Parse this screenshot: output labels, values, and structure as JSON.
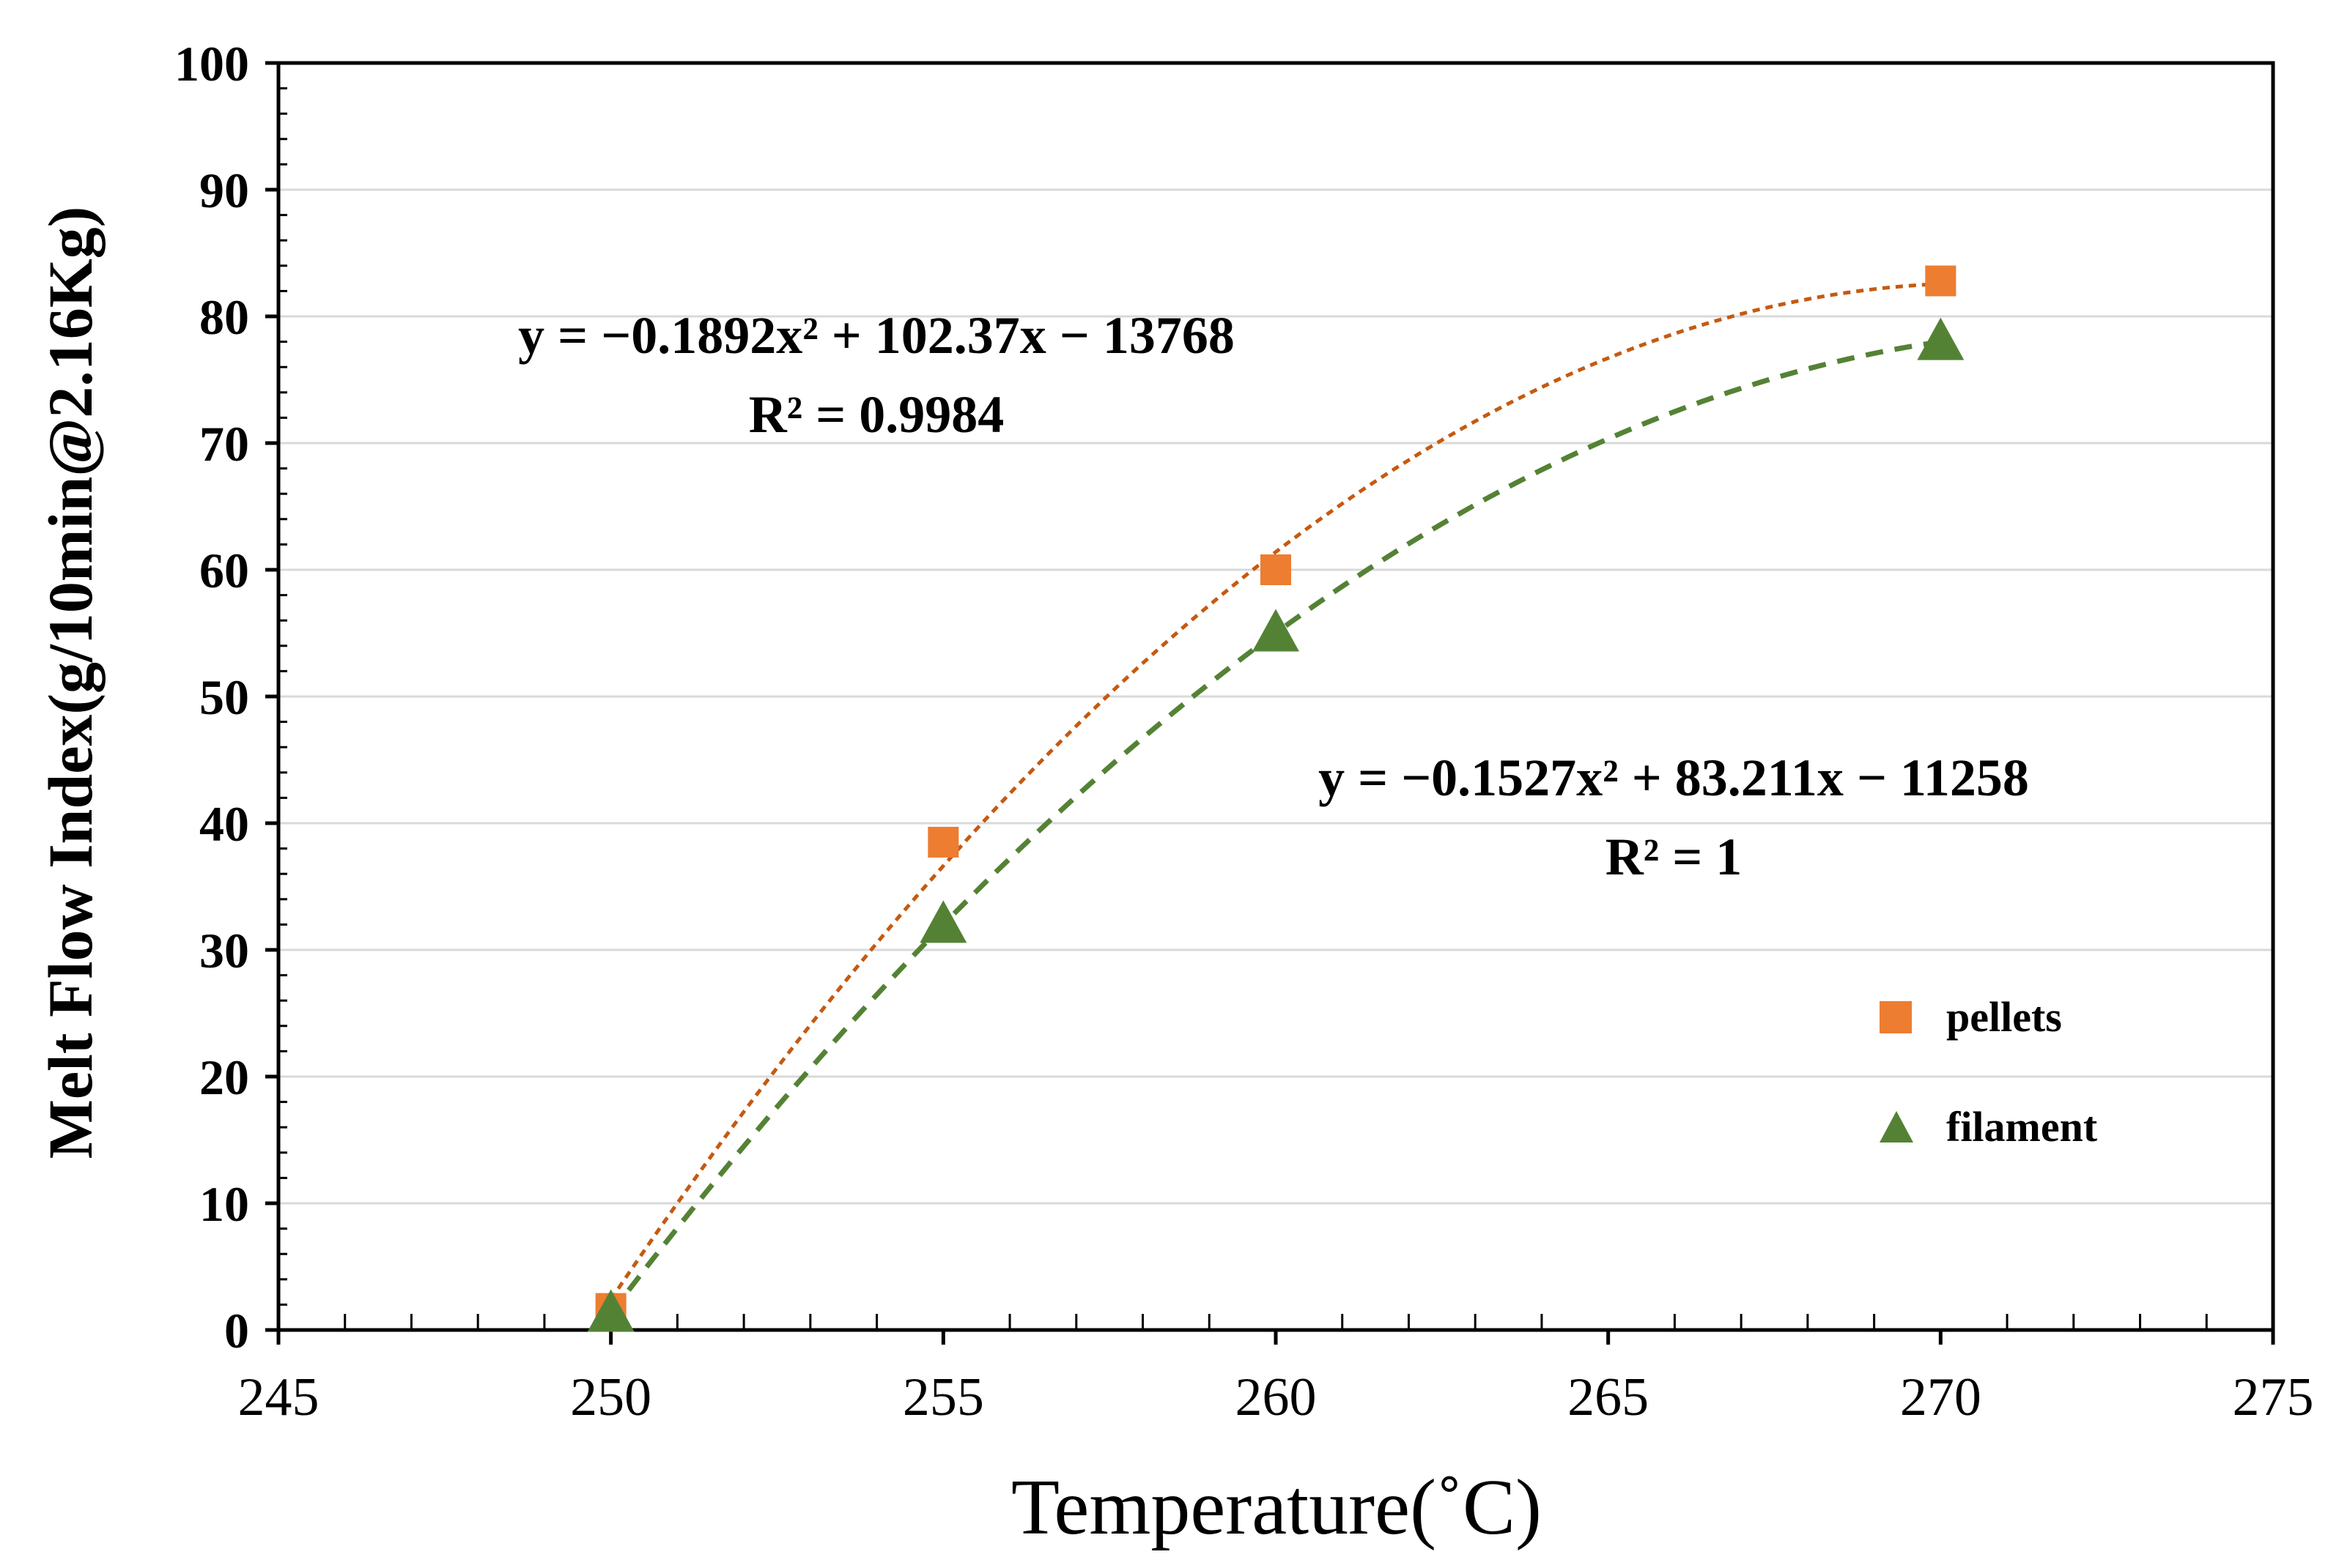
{
  "chart_data": {
    "type": "scatter",
    "title": "",
    "xlabel": "Temperature(˚C)",
    "ylabel": "Melt Flow Index(g/10min@2.16Kg)",
    "xlim": [
      245,
      275
    ],
    "ylim": [
      0,
      100
    ],
    "xticks": [
      245,
      250,
      255,
      260,
      265,
      270,
      275
    ],
    "yticks": [
      0,
      10,
      20,
      30,
      40,
      50,
      60,
      70,
      80,
      90,
      100
    ],
    "xtick_labels": [
      "245",
      "250",
      "255",
      "260",
      "265",
      "270",
      "275"
    ],
    "ytick_labels": [
      "0",
      "10",
      "20",
      "30",
      "40",
      "50",
      "60",
      "70",
      "80",
      "90",
      "100"
    ],
    "grid": "horizontal",
    "legend_position": "right",
    "series": [
      {
        "name": "pellets",
        "marker": "square",
        "color": "#ED7D31",
        "trend_color": "#C55A11",
        "x": [
          250,
          255,
          260,
          270
        ],
        "y": [
          1.7,
          38.5,
          60,
          82.8
        ],
        "equation": "y = −0.1892x² + 102.37x − 13768",
        "r2": "R² = 0.9984"
      },
      {
        "name": "filament",
        "marker": "triangle",
        "color": "#548235",
        "trend_color": "#548235",
        "x": [
          250,
          255,
          260,
          270
        ],
        "y": [
          1.3,
          32,
          55,
          78
        ],
        "equation": "y = −0.1527x² + 83.211x −  11258",
        "r2": "R² = 1"
      }
    ]
  }
}
